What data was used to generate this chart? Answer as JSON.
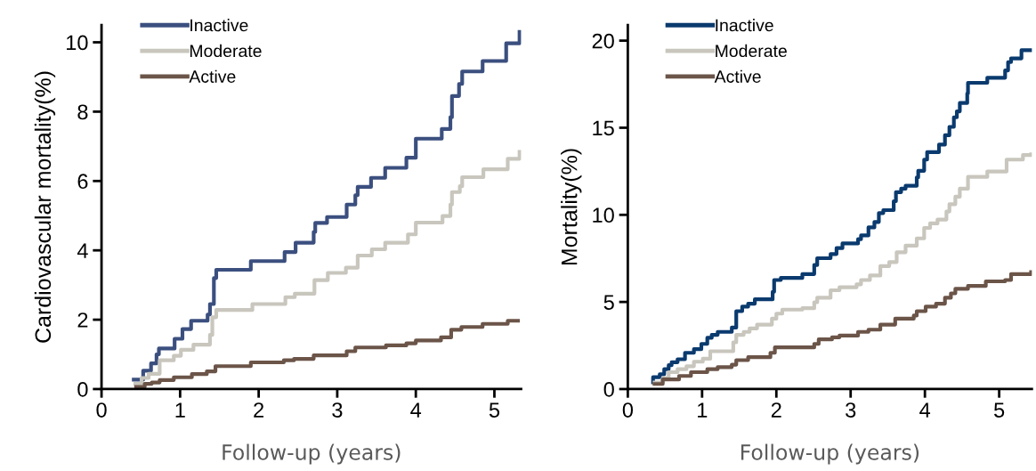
{
  "chart_data": [
    {
      "type": "step",
      "xlabel": "Follow-up (years)",
      "ylabel": "Cardiovascular mortality(%)",
      "xlim": [
        0,
        5.34
      ],
      "ylim": [
        0,
        10.5
      ],
      "xticks": [
        0,
        1,
        2,
        3,
        4,
        5
      ],
      "yticks": [
        0,
        2,
        4,
        6,
        8,
        10
      ],
      "legend": "top left",
      "grid": false,
      "series": [
        {
          "name": "Inactive",
          "color": "#3b4f7f",
          "x": [
            0.41,
            0.53,
            0.63,
            0.7,
            0.73,
            0.93,
            1.03,
            1.14,
            1.35,
            1.38,
            1.43,
            1.46,
            1.9,
            2.33,
            2.47,
            2.7,
            2.72,
            2.87,
            3.12,
            3.23,
            3.26,
            3.43,
            3.61,
            3.88,
            4.0,
            4.33,
            4.44,
            4.46,
            4.55,
            4.59,
            4.85,
            5.15,
            5.32
          ],
          "values": [
            0.27,
            0.53,
            0.74,
            1.0,
            1.17,
            1.45,
            1.73,
            1.97,
            2.15,
            2.45,
            3.2,
            3.44,
            3.69,
            3.95,
            4.22,
            4.53,
            4.79,
            4.96,
            5.32,
            5.59,
            5.83,
            6.09,
            6.38,
            6.67,
            7.22,
            7.5,
            7.84,
            8.45,
            8.8,
            9.16,
            9.46,
            9.97,
            10.3
          ]
        },
        {
          "name": "Moderate",
          "color": "#c8c6bd",
          "x": [
            0.43,
            0.51,
            0.6,
            0.74,
            0.92,
            1.01,
            1.17,
            1.38,
            1.41,
            1.46,
            1.92,
            2.34,
            2.46,
            2.71,
            2.88,
            3.11,
            3.26,
            3.44,
            3.61,
            3.9,
            4.0,
            4.34,
            4.44,
            4.46,
            4.56,
            4.59,
            4.86,
            5.17,
            5.32
          ],
          "values": [
            0.15,
            0.32,
            0.44,
            0.83,
            0.96,
            1.13,
            1.28,
            1.56,
            2.07,
            2.28,
            2.45,
            2.65,
            2.75,
            3.14,
            3.35,
            3.5,
            3.85,
            4.03,
            4.22,
            4.46,
            4.8,
            4.99,
            5.32,
            5.68,
            5.85,
            6.11,
            6.34,
            6.64,
            6.84
          ]
        },
        {
          "name": "Active",
          "color": "#6b5448",
          "x": [
            0.44,
            0.55,
            0.64,
            0.74,
            0.92,
            1.15,
            1.34,
            1.45,
            1.9,
            2.32,
            2.45,
            2.7,
            3.12,
            3.23,
            3.62,
            3.88,
            4.0,
            4.32,
            4.45,
            4.58,
            4.85,
            5.17,
            5.3
          ],
          "values": [
            0.06,
            0.15,
            0.19,
            0.26,
            0.34,
            0.43,
            0.51,
            0.66,
            0.77,
            0.83,
            0.87,
            0.97,
            1.09,
            1.2,
            1.26,
            1.32,
            1.4,
            1.49,
            1.71,
            1.79,
            1.88,
            1.97,
            1.97
          ]
        }
      ]
    },
    {
      "type": "step",
      "xlabel": "Follow-up (years)",
      "ylabel": "Mortality(%)",
      "xlim": [
        0,
        5.44
      ],
      "ylim": [
        0,
        20.9
      ],
      "xticks": [
        0,
        1,
        2,
        3,
        4,
        5
      ],
      "yticks": [
        0,
        5,
        10,
        15,
        20
      ],
      "legend": "top left",
      "grid": false,
      "series": [
        {
          "name": "Inactive",
          "color": "#0a3a6e",
          "x": [
            0.34,
            0.34,
            0.43,
            0.49,
            0.55,
            0.59,
            0.67,
            0.77,
            0.89,
            0.99,
            1.07,
            1.13,
            1.21,
            1.4,
            1.46,
            1.54,
            1.62,
            1.71,
            1.95,
            1.97,
            2.06,
            2.35,
            2.51,
            2.55,
            2.73,
            2.81,
            2.89,
            3.1,
            3.14,
            3.24,
            3.32,
            3.38,
            3.44,
            3.58,
            3.61,
            3.68,
            3.74,
            3.89,
            3.91,
            3.99,
            4.03,
            4.19,
            4.27,
            4.33,
            4.39,
            4.43,
            4.47,
            4.57,
            4.58,
            4.84,
            5.08,
            5.12,
            5.16,
            5.3,
            5.43
          ],
          "values": [
            0.38,
            0.68,
            0.85,
            1.14,
            1.37,
            1.54,
            1.71,
            2.08,
            2.29,
            2.59,
            2.94,
            3.11,
            3.28,
            3.53,
            4.47,
            4.73,
            4.9,
            5.15,
            5.58,
            6.26,
            6.38,
            6.6,
            7.12,
            7.51,
            7.75,
            8.09,
            8.36,
            8.6,
            8.82,
            9.28,
            9.59,
            10.1,
            10.27,
            10.78,
            11.3,
            11.5,
            11.67,
            12.15,
            12.53,
            13.17,
            13.6,
            14.03,
            14.57,
            15.05,
            15.6,
            15.94,
            16.42,
            16.96,
            17.58,
            17.87,
            18.29,
            18.77,
            18.98,
            19.45,
            19.45
          ]
        },
        {
          "name": "Moderate",
          "color": "#c8c6bd",
          "x": [
            0.36,
            0.47,
            0.55,
            0.67,
            0.79,
            0.89,
            1.01,
            1.11,
            1.42,
            1.46,
            1.56,
            1.64,
            1.74,
            1.94,
            2.0,
            2.08,
            2.35,
            2.51,
            2.55,
            2.73,
            2.85,
            3.08,
            3.14,
            3.26,
            3.4,
            3.52,
            3.62,
            3.74,
            3.89,
            3.99,
            4.07,
            4.17,
            4.29,
            4.33,
            4.41,
            4.47,
            4.58,
            4.84,
            5.1,
            5.32,
            5.43
          ],
          "values": [
            0.38,
            0.63,
            0.97,
            1.14,
            1.31,
            1.57,
            1.74,
            2.17,
            2.68,
            3.11,
            3.28,
            3.48,
            3.7,
            4.04,
            4.33,
            4.56,
            4.64,
            4.98,
            5.24,
            5.67,
            5.84,
            6.01,
            6.26,
            6.52,
            7.06,
            7.29,
            7.85,
            8.23,
            8.65,
            9.25,
            9.51,
            9.73,
            10.19,
            10.61,
            11.04,
            11.5,
            12.18,
            12.49,
            13.17,
            13.43,
            13.48
          ]
        },
        {
          "name": "Active",
          "color": "#6b5448",
          "x": [
            0.36,
            0.47,
            0.69,
            0.85,
            1.07,
            1.21,
            1.4,
            1.46,
            1.62,
            1.92,
            1.98,
            2.51,
            2.57,
            2.75,
            2.85,
            3.1,
            3.24,
            3.4,
            3.6,
            3.85,
            3.89,
            4.01,
            4.15,
            4.27,
            4.35,
            4.41,
            4.58,
            4.82,
            5.08,
            5.16,
            5.43
          ],
          "values": [
            0.29,
            0.55,
            0.75,
            0.97,
            1.14,
            1.26,
            1.4,
            1.66,
            1.83,
            2.08,
            2.39,
            2.59,
            2.85,
            2.97,
            3.07,
            3.28,
            3.41,
            3.7,
            4.04,
            4.22,
            4.47,
            4.73,
            4.9,
            5.24,
            5.49,
            5.75,
            5.92,
            6.18,
            6.26,
            6.6,
            6.72
          ]
        }
      ]
    }
  ]
}
